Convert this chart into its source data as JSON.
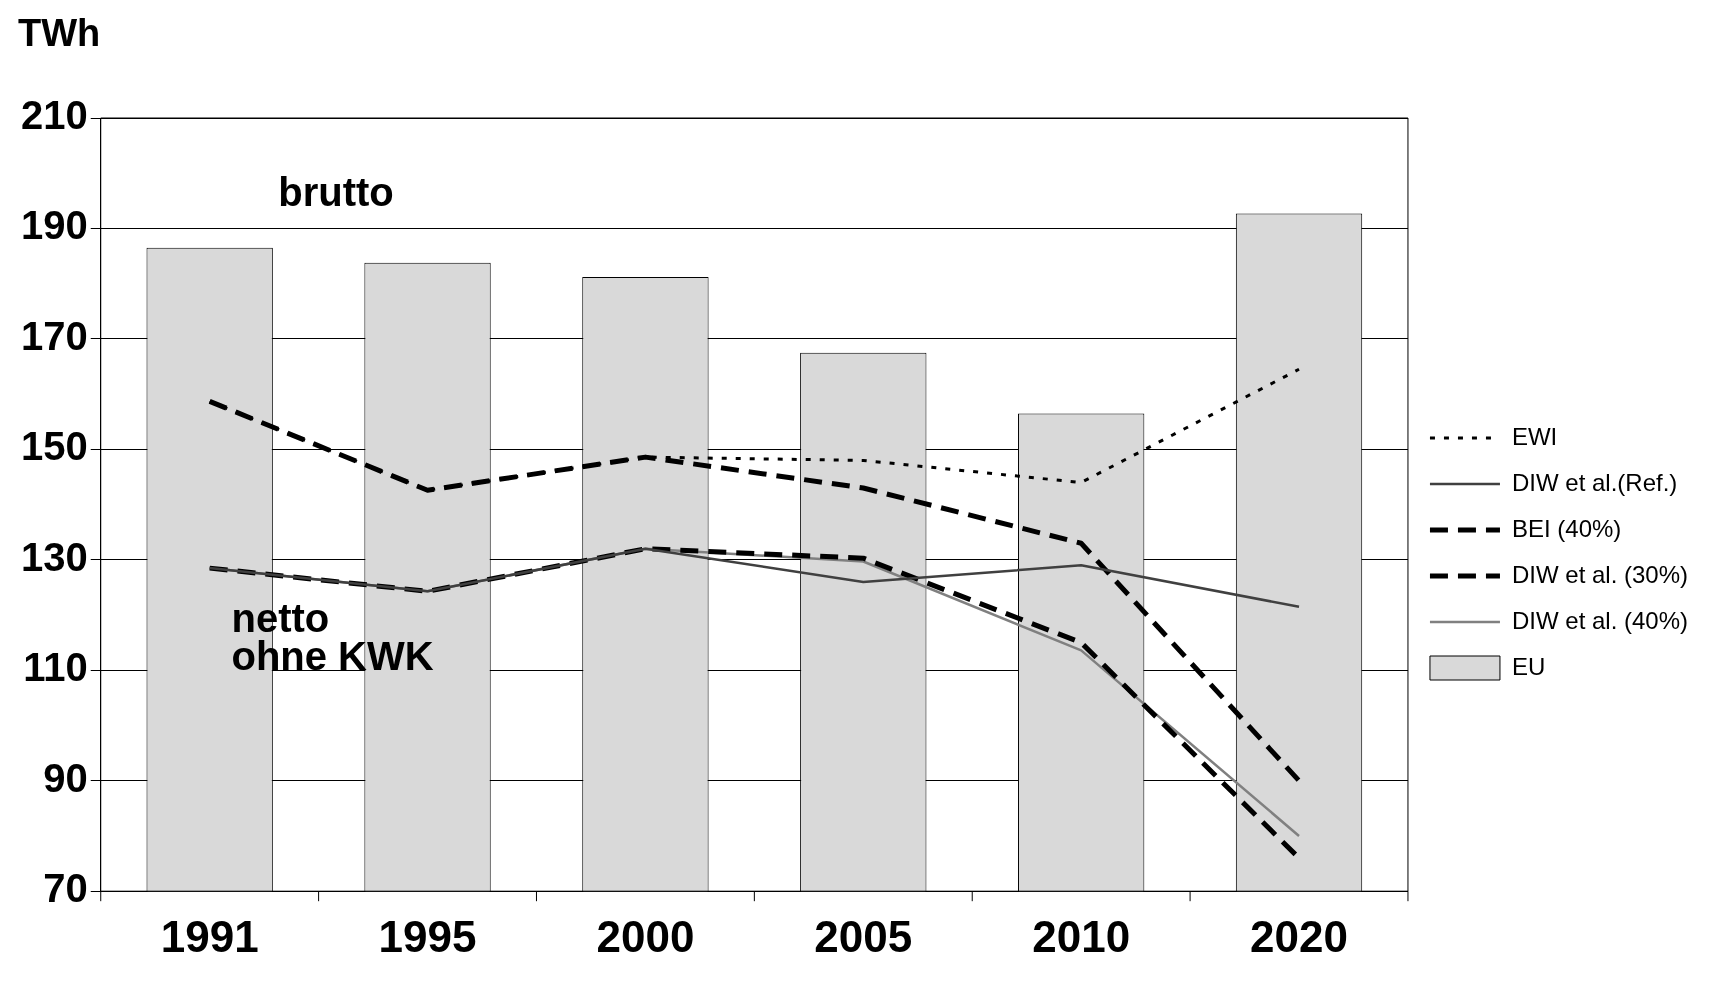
{
  "chart_data": {
    "type": "line",
    "ylabel": "TWh",
    "categories": [
      "1991",
      "1995",
      "2000",
      "2005",
      "2010",
      "2020"
    ],
    "series": [
      {
        "name": "EWI",
        "color": "#000000",
        "line_style": "dotted",
        "values": [
          158.7,
          142.6,
          148.6,
          148,
          144,
          164.5
        ]
      },
      {
        "name": "DIW et al.(Ref.)",
        "color": "#404040",
        "line_style": "solid",
        "values": [
          128.5,
          124.3,
          132,
          126,
          129,
          121.5
        ]
      },
      {
        "name": "BEI (40%)",
        "color": "#000000",
        "line_style": "dashed",
        "values": [
          158.7,
          142.6,
          148.6,
          143,
          133,
          90
        ]
      },
      {
        "name": "DIW et al. (30%)",
        "color": "#000000",
        "line_style": "dashed",
        "values": [
          128.5,
          124.3,
          132,
          130.3,
          115,
          76
        ]
      },
      {
        "name": "DIW et al. (40%)",
        "color": "#808080",
        "line_style": "solid",
        "values": [
          128.5,
          124.3,
          132,
          129.7,
          113.6,
          80
        ]
      },
      {
        "name": "EU",
        "type": "bar",
        "color": "#d9d9d9",
        "values": [
          186.5,
          183.8,
          181.2,
          167.5,
          156.5,
          192.7
        ]
      }
    ],
    "annotations": [
      "brutto",
      "netto",
      "ohne KWK"
    ],
    "ylim": [
      70,
      210
    ],
    "yticks": [
      70,
      90,
      110,
      130,
      150,
      170,
      190,
      210
    ],
    "grid": "y",
    "legend": "right",
    "marker": "none"
  }
}
